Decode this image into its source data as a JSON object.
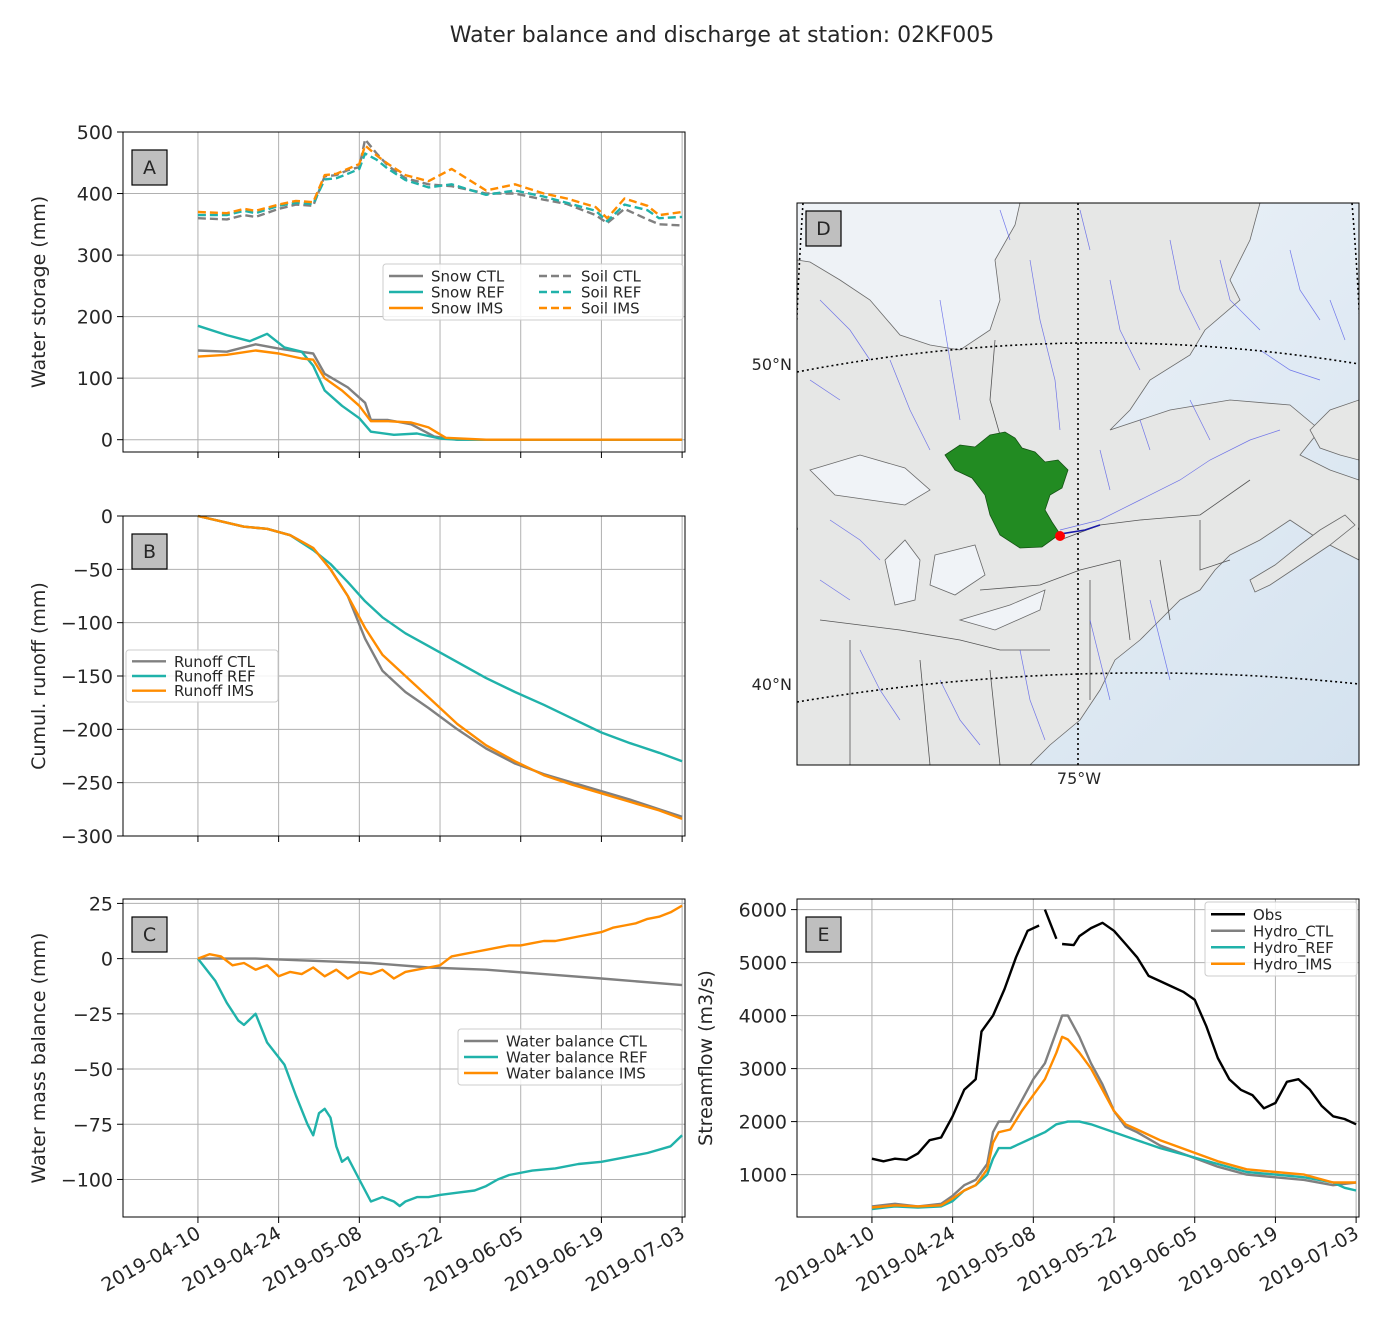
{
  "suptitle": "Water balance and discharge at station: 02KF005",
  "colors": {
    "ctl": "#808080",
    "ref": "#20b2aa",
    "ims": "#ff8c00",
    "obs": "#000000"
  },
  "x_ticks": [
    "2019-04-10",
    "2019-04-24",
    "2019-05-08",
    "2019-05-22",
    "2019-06-05",
    "2019-06-19",
    "2019-07-03"
  ],
  "chart_data": [
    {
      "id": "A",
      "type": "line",
      "panel_label": "A",
      "ylabel": "Water storage (mm)",
      "ylim": [
        -20,
        500
      ],
      "yticks": [
        0,
        100,
        200,
        300,
        400,
        500
      ],
      "xlim": [
        -13,
        84.5
      ],
      "legend_position": "center-right",
      "legend_columns": 2,
      "series": [
        {
          "name": "Snow CTL",
          "color": "ctl",
          "dash": false,
          "x": [
            0,
            5,
            10,
            14,
            20,
            22,
            26,
            29,
            30,
            33,
            37,
            41,
            45,
            50,
            60,
            84
          ],
          "y": [
            145,
            143,
            155,
            148,
            140,
            107,
            85,
            60,
            32,
            32,
            25,
            5,
            0,
            0,
            0,
            0
          ]
        },
        {
          "name": "Snow REF",
          "color": "ref",
          "dash": false,
          "x": [
            0,
            5,
            9,
            12,
            15,
            18,
            20,
            22,
            25,
            28,
            30,
            34,
            38,
            42,
            45,
            84
          ],
          "y": [
            185,
            170,
            160,
            172,
            150,
            143,
            120,
            80,
            55,
            35,
            13,
            8,
            10,
            2,
            0,
            0
          ]
        },
        {
          "name": "Snow IMS",
          "color": "ims",
          "dash": false,
          "x": [
            0,
            5,
            10,
            14,
            18,
            20,
            22,
            25,
            28,
            30,
            33,
            37,
            40,
            43,
            50,
            84
          ],
          "y": [
            135,
            138,
            145,
            140,
            132,
            130,
            100,
            80,
            55,
            30,
            30,
            28,
            20,
            3,
            0,
            0
          ]
        },
        {
          "name": "Soil CTL",
          "color": "ctl",
          "dash": true,
          "x": [
            0,
            5,
            8,
            10,
            14,
            17,
            20,
            22,
            24,
            26,
            28,
            29,
            31,
            33,
            36,
            40,
            44,
            50,
            55,
            60,
            64,
            69,
            71,
            74,
            78,
            80,
            84
          ],
          "y": [
            360,
            358,
            365,
            362,
            375,
            382,
            380,
            428,
            430,
            438,
            443,
            488,
            465,
            445,
            425,
            415,
            412,
            400,
            400,
            390,
            383,
            365,
            352,
            375,
            358,
            350,
            348
          ]
        },
        {
          "name": "Soil REF",
          "color": "ref",
          "dash": true,
          "x": [
            0,
            5,
            8,
            10,
            14,
            17,
            20,
            22,
            24,
            26,
            28,
            29,
            31,
            33,
            36,
            40,
            44,
            50,
            55,
            60,
            64,
            69,
            71,
            74,
            78,
            80,
            84
          ],
          "y": [
            365,
            365,
            372,
            368,
            380,
            385,
            383,
            423,
            425,
            432,
            440,
            465,
            455,
            440,
            422,
            410,
            415,
            398,
            405,
            395,
            385,
            372,
            355,
            382,
            373,
            360,
            362
          ]
        },
        {
          "name": "Soil IMS",
          "color": "ims",
          "dash": true,
          "x": [
            0,
            5,
            8,
            10,
            14,
            17,
            20,
            22,
            24,
            26,
            28,
            29,
            31,
            33,
            36,
            40,
            44,
            50,
            55,
            60,
            64,
            69,
            71,
            74,
            78,
            80,
            84
          ],
          "y": [
            370,
            368,
            375,
            372,
            382,
            388,
            386,
            430,
            432,
            440,
            448,
            478,
            462,
            448,
            430,
            420,
            440,
            405,
            415,
            400,
            392,
            378,
            360,
            392,
            380,
            365,
            370
          ]
        }
      ]
    },
    {
      "id": "B",
      "type": "line",
      "panel_label": "B",
      "ylabel": "Cumul. runoff (mm)",
      "ylim": [
        -300,
        0
      ],
      "yticks": [
        0,
        -50,
        -100,
        -150,
        -200,
        -250,
        -300
      ],
      "xlim": [
        -13,
        84.5
      ],
      "legend_position": "center-left",
      "legend_columns": 1,
      "series": [
        {
          "name": "Runoff CTL",
          "color": "ctl",
          "dash": false,
          "x": [
            0,
            4,
            8,
            12,
            16,
            20,
            23,
            26,
            29,
            32,
            36,
            40,
            45,
            50,
            55,
            60,
            65,
            70,
            75,
            80,
            84
          ],
          "y": [
            0,
            -5,
            -10,
            -12,
            -18,
            -30,
            -50,
            -75,
            -115,
            -145,
            -165,
            -180,
            -200,
            -218,
            -232,
            -242,
            -250,
            -258,
            -266,
            -275,
            -282
          ]
        },
        {
          "name": "Runoff REF",
          "color": "ref",
          "dash": false,
          "x": [
            0,
            4,
            8,
            12,
            16,
            20,
            23,
            26,
            29,
            32,
            36,
            40,
            45,
            50,
            55,
            60,
            65,
            70,
            75,
            80,
            84
          ],
          "y": [
            0,
            -5,
            -10,
            -12,
            -18,
            -32,
            -45,
            -62,
            -80,
            -95,
            -110,
            -122,
            -137,
            -152,
            -165,
            -177,
            -190,
            -203,
            -213,
            -222,
            -230
          ]
        },
        {
          "name": "Runoff IMS",
          "color": "ims",
          "dash": false,
          "x": [
            0,
            4,
            8,
            12,
            16,
            20,
            23,
            26,
            29,
            32,
            36,
            40,
            45,
            50,
            55,
            60,
            65,
            70,
            75,
            80,
            84
          ],
          "y": [
            0,
            -5,
            -10,
            -12,
            -18,
            -30,
            -50,
            -75,
            -105,
            -130,
            -150,
            -170,
            -195,
            -215,
            -230,
            -243,
            -252,
            -260,
            -268,
            -276,
            -284
          ]
        }
      ]
    },
    {
      "id": "C",
      "type": "line",
      "panel_label": "C",
      "ylabel": "Water mass balance (mm)",
      "ylim": [
        -117,
        27
      ],
      "yticks": [
        25,
        0,
        -25,
        -50,
        -75,
        -100
      ],
      "xlim": [
        -13,
        84.5
      ],
      "legend_position": "center-right",
      "legend_columns": 1,
      "series": [
        {
          "name": "Water balance CTL",
          "color": "ctl",
          "dash": false,
          "x": [
            0,
            10,
            20,
            30,
            40,
            50,
            60,
            70,
            84
          ],
          "y": [
            0,
            0,
            -1,
            -2,
            -4,
            -5,
            -7,
            -9,
            -12
          ]
        },
        {
          "name": "Water balance REF",
          "color": "ref",
          "dash": false,
          "x": [
            0,
            3,
            5,
            7,
            8,
            10,
            12,
            15,
            17,
            19,
            20,
            21,
            22,
            23,
            24,
            25,
            26,
            28,
            30,
            32,
            34,
            35,
            36,
            38,
            40,
            42,
            45,
            48,
            50,
            52,
            54,
            58,
            62,
            66,
            70,
            74,
            78,
            82,
            84
          ],
          "y": [
            0,
            -10,
            -20,
            -28,
            -30,
            -25,
            -38,
            -48,
            -62,
            -75,
            -80,
            -70,
            -68,
            -72,
            -85,
            -92,
            -90,
            -100,
            -110,
            -108,
            -110,
            -112,
            -110,
            -108,
            -108,
            -107,
            -106,
            -105,
            -103,
            -100,
            -98,
            -96,
            -95,
            -93,
            -92,
            -90,
            -88,
            -85,
            -80
          ]
        },
        {
          "name": "Water balance IMS",
          "color": "ims",
          "dash": false,
          "x": [
            0,
            2,
            4,
            6,
            8,
            10,
            12,
            14,
            16,
            18,
            20,
            22,
            24,
            26,
            28,
            30,
            32,
            34,
            36,
            38,
            40,
            42,
            44,
            46,
            48,
            50,
            52,
            54,
            56,
            58,
            60,
            62,
            64,
            66,
            68,
            70,
            72,
            74,
            76,
            78,
            80,
            82,
            84
          ],
          "y": [
            0,
            2,
            1,
            -3,
            -2,
            -5,
            -3,
            -8,
            -6,
            -7,
            -4,
            -8,
            -5,
            -9,
            -6,
            -7,
            -5,
            -9,
            -6,
            -5,
            -4,
            -3,
            1,
            2,
            3,
            4,
            5,
            6,
            6,
            7,
            8,
            8,
            9,
            10,
            11,
            12,
            14,
            15,
            16,
            18,
            19,
            21,
            24
          ]
        }
      ]
    },
    {
      "id": "E",
      "type": "line",
      "panel_label": "E",
      "ylabel": "Streamflow (m3/s)",
      "ylim": [
        200,
        6200
      ],
      "yticks": [
        1000,
        2000,
        3000,
        4000,
        5000,
        6000
      ],
      "xlim": [
        -13,
        84.5
      ],
      "legend_position": "upper-right",
      "legend_columns": 1,
      "series": [
        {
          "name": "Obs",
          "color": "obs",
          "dash": false,
          "segments": [
            {
              "x": [
                0,
                2,
                4,
                6,
                8,
                10,
                12,
                14,
                16,
                18,
                19,
                21,
                23,
                25,
                27,
                29
              ],
              "y": [
                1300,
                1250,
                1300,
                1280,
                1400,
                1650,
                1700,
                2100,
                2600,
                2800,
                3700,
                4000,
                4500,
                5100,
                5600,
                5700
              ]
            },
            {
              "x": [
                30,
                32
              ],
              "y": [
                6000,
                5450
              ]
            },
            {
              "x": [
                33,
                35,
                36,
                38,
                40,
                42,
                44,
                46,
                48,
                50,
                52,
                54,
                56,
                58,
                60,
                62,
                64,
                66,
                68,
                70,
                72,
                74,
                76,
                78,
                80,
                82,
                84
              ],
              "y": [
                5350,
                5330,
                5500,
                5650,
                5750,
                5600,
                5350,
                5100,
                4750,
                4650,
                4550,
                4450,
                4300,
                3800,
                3200,
                2800,
                2600,
                2500,
                2250,
                2350,
                2750,
                2800,
                2600,
                2300,
                2100,
                2050,
                1950
              ]
            }
          ]
        },
        {
          "name": "Hydro_CTL",
          "color": "ctl",
          "dash": false,
          "x": [
            0,
            4,
            8,
            12,
            14,
            16,
            18,
            20,
            21,
            22,
            24,
            26,
            28,
            30,
            32,
            33,
            34,
            36,
            38,
            40,
            42,
            44,
            46,
            50,
            55,
            60,
            65,
            70,
            75,
            80,
            84
          ],
          "y": [
            400,
            450,
            400,
            450,
            600,
            800,
            900,
            1200,
            1800,
            2000,
            2000,
            2400,
            2800,
            3100,
            3700,
            4000,
            4000,
            3600,
            3100,
            2700,
            2200,
            1900,
            1800,
            1550,
            1350,
            1150,
            1000,
            950,
            900,
            800,
            850
          ]
        },
        {
          "name": "Hydro_REF",
          "color": "ref",
          "dash": false,
          "x": [
            0,
            4,
            8,
            12,
            14,
            16,
            18,
            20,
            21,
            22,
            24,
            26,
            28,
            30,
            32,
            34,
            36,
            38,
            42,
            46,
            50,
            55,
            60,
            65,
            70,
            75,
            80,
            82,
            84
          ],
          "y": [
            350,
            400,
            380,
            400,
            500,
            700,
            800,
            1000,
            1300,
            1500,
            1500,
            1600,
            1700,
            1800,
            1950,
            2000,
            2000,
            1950,
            1800,
            1650,
            1500,
            1350,
            1200,
            1050,
            1000,
            950,
            850,
            750,
            700
          ]
        },
        {
          "name": "Hydro_IMS",
          "color": "ims",
          "dash": false,
          "x": [
            0,
            4,
            8,
            12,
            14,
            16,
            18,
            20,
            21,
            22,
            24,
            26,
            28,
            30,
            32,
            33,
            34,
            36,
            38,
            40,
            42,
            44,
            46,
            50,
            55,
            60,
            65,
            70,
            75,
            80,
            84
          ],
          "y": [
            380,
            420,
            400,
            420,
            550,
            700,
            800,
            1100,
            1600,
            1800,
            1850,
            2200,
            2500,
            2800,
            3300,
            3600,
            3550,
            3300,
            3000,
            2600,
            2200,
            1950,
            1850,
            1650,
            1450,
            1250,
            1100,
            1050,
            1000,
            850,
            850
          ]
        }
      ]
    }
  ],
  "map": {
    "panel_label": "D",
    "lat_labels": [
      "50°N",
      "40°N"
    ],
    "lon_labels": [
      "75°W"
    ],
    "station_color": "#ff0000",
    "basin_color": "#228b22"
  }
}
